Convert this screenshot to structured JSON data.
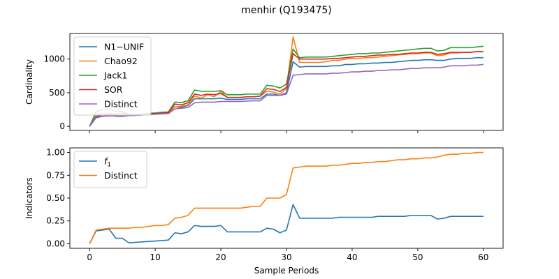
{
  "figure": {
    "title": "menhir (Q193475)"
  },
  "chart_data": [
    {
      "type": "line",
      "title": "",
      "xlabel": "",
      "ylabel": "Cardinality",
      "xlim": [
        -3,
        63
      ],
      "ylim": [
        -60,
        1380
      ],
      "xticks": [
        0,
        10,
        20,
        30,
        40,
        50,
        60
      ],
      "yticks": [
        0,
        500,
        1000
      ],
      "legend": "upper-left",
      "x": [
        0,
        1,
        2,
        3,
        4,
        5,
        6,
        7,
        8,
        9,
        10,
        11,
        12,
        13,
        14,
        15,
        16,
        17,
        18,
        19,
        20,
        21,
        22,
        23,
        24,
        25,
        26,
        27,
        28,
        29,
        30,
        31,
        32,
        33,
        34,
        35,
        36,
        37,
        38,
        39,
        40,
        41,
        42,
        43,
        44,
        45,
        46,
        47,
        48,
        49,
        50,
        51,
        52,
        53,
        54,
        55,
        56,
        57,
        58,
        59,
        60
      ],
      "series": [
        {
          "name": "N1−UNIF",
          "color": "#1f77b4",
          "values": [
            0,
            130,
            150,
            170,
            150,
            150,
            160,
            165,
            170,
            180,
            185,
            190,
            195,
            290,
            285,
            310,
            410,
            410,
            410,
            410,
            420,
            400,
            400,
            400,
            410,
            410,
            410,
            480,
            480,
            460,
            500,
            960,
            880,
            890,
            890,
            890,
            890,
            900,
            900,
            920,
            920,
            930,
            930,
            940,
            940,
            950,
            950,
            960,
            970,
            980,
            980,
            990,
            990,
            980,
            980,
            1000,
            1010,
            1010,
            1010,
            1020,
            1020
          ]
        },
        {
          "name": "Chao92",
          "color": "#ff7f0e",
          "values": [
            0,
            180,
            190,
            190,
            180,
            200,
            170,
            170,
            175,
            185,
            190,
            195,
            200,
            290,
            300,
            320,
            450,
            420,
            470,
            440,
            520,
            430,
            430,
            430,
            440,
            440,
            450,
            520,
            510,
            480,
            560,
            1330,
            950,
            950,
            950,
            950,
            960,
            980,
            980,
            1000,
            1010,
            1010,
            1020,
            1020,
            1030,
            1040,
            1050,
            1060,
            1070,
            1080,
            1080,
            1090,
            1090,
            1050,
            1060,
            1090,
            1090,
            1100,
            1100,
            1110,
            1110
          ]
        },
        {
          "name": "Jack1",
          "color": "#2ca02c",
          "values": [
            0,
            220,
            250,
            260,
            220,
            220,
            180,
            180,
            185,
            195,
            200,
            210,
            215,
            360,
            355,
            380,
            540,
            520,
            520,
            520,
            530,
            470,
            470,
            470,
            480,
            480,
            480,
            610,
            600,
            570,
            630,
            1150,
            1020,
            1030,
            1030,
            1030,
            1030,
            1040,
            1050,
            1060,
            1070,
            1080,
            1080,
            1090,
            1090,
            1100,
            1110,
            1120,
            1130,
            1140,
            1150,
            1160,
            1160,
            1120,
            1130,
            1170,
            1170,
            1170,
            1170,
            1180,
            1190
          ]
        },
        {
          "name": "SOR",
          "color": "#d62728",
          "values": [
            0,
            150,
            170,
            180,
            160,
            170,
            165,
            170,
            175,
            185,
            190,
            195,
            205,
            330,
            320,
            350,
            480,
            460,
            480,
            470,
            490,
            430,
            430,
            430,
            440,
            440,
            450,
            560,
            550,
            520,
            580,
            1080,
            1000,
            1000,
            1000,
            1000,
            1000,
            1010,
            1010,
            1020,
            1030,
            1040,
            1040,
            1050,
            1060,
            1060,
            1070,
            1070,
            1080,
            1090,
            1090,
            1100,
            1100,
            1070,
            1080,
            1100,
            1100,
            1100,
            1100,
            1110,
            1110
          ]
        },
        {
          "name": "Distinct",
          "color": "#9467bd",
          "values": [
            0,
            140,
            150,
            155,
            155,
            160,
            160,
            165,
            170,
            175,
            180,
            185,
            190,
            260,
            270,
            280,
            350,
            360,
            360,
            360,
            370,
            370,
            370,
            370,
            375,
            380,
            380,
            460,
            460,
            460,
            480,
            760,
            770,
            780,
            780,
            780,
            780,
            790,
            790,
            800,
            810,
            810,
            820,
            820,
            830,
            830,
            840,
            840,
            850,
            860,
            860,
            870,
            870,
            870,
            880,
            900,
            900,
            900,
            910,
            910,
            920
          ]
        }
      ]
    },
    {
      "type": "line",
      "title": "",
      "xlabel": "Sample Periods",
      "ylabel": "Indicators",
      "xlim": [
        -3,
        63
      ],
      "ylim": [
        -0.05,
        1.05
      ],
      "xticks": [
        0,
        10,
        20,
        30,
        40,
        50,
        60
      ],
      "yticks": [
        0.0,
        0.25,
        0.5,
        0.75,
        1.0
      ],
      "ytick_labels": [
        "0.00",
        "0.25",
        "0.50",
        "0.75",
        "1.00"
      ],
      "legend": "upper-left",
      "x": [
        0,
        1,
        2,
        3,
        4,
        5,
        6,
        7,
        8,
        9,
        10,
        11,
        12,
        13,
        14,
        15,
        16,
        17,
        18,
        19,
        20,
        21,
        22,
        23,
        24,
        25,
        26,
        27,
        28,
        29,
        30,
        31,
        32,
        33,
        34,
        35,
        36,
        37,
        38,
        39,
        40,
        41,
        42,
        43,
        44,
        45,
        46,
        47,
        48,
        49,
        50,
        51,
        52,
        53,
        54,
        55,
        56,
        57,
        58,
        59,
        60
      ],
      "series": [
        {
          "name": "f1",
          "name_main": "f",
          "name_sub": "1",
          "color": "#1f77b4",
          "values": [
            0,
            0.14,
            0.15,
            0.16,
            0.06,
            0.06,
            0.01,
            0.015,
            0.02,
            0.025,
            0.03,
            0.035,
            0.04,
            0.12,
            0.11,
            0.13,
            0.2,
            0.19,
            0.19,
            0.19,
            0.2,
            0.13,
            0.13,
            0.13,
            0.13,
            0.13,
            0.13,
            0.17,
            0.16,
            0.12,
            0.15,
            0.43,
            0.28,
            0.28,
            0.28,
            0.28,
            0.28,
            0.28,
            0.29,
            0.29,
            0.29,
            0.29,
            0.29,
            0.29,
            0.3,
            0.3,
            0.3,
            0.3,
            0.3,
            0.31,
            0.31,
            0.31,
            0.31,
            0.27,
            0.28,
            0.3,
            0.3,
            0.3,
            0.3,
            0.3,
            0.3
          ]
        },
        {
          "name": "Distinct",
          "color": "#ff7f0e",
          "values": [
            0,
            0.15,
            0.16,
            0.17,
            0.17,
            0.17,
            0.17,
            0.18,
            0.18,
            0.19,
            0.2,
            0.2,
            0.21,
            0.28,
            0.29,
            0.31,
            0.39,
            0.39,
            0.39,
            0.39,
            0.39,
            0.39,
            0.39,
            0.39,
            0.4,
            0.41,
            0.41,
            0.5,
            0.5,
            0.5,
            0.54,
            0.83,
            0.84,
            0.85,
            0.85,
            0.85,
            0.85,
            0.86,
            0.86,
            0.87,
            0.88,
            0.88,
            0.89,
            0.89,
            0.9,
            0.9,
            0.91,
            0.92,
            0.92,
            0.93,
            0.93,
            0.94,
            0.94,
            0.95,
            0.97,
            0.98,
            0.98,
            0.99,
            0.99,
            1.0,
            1.0
          ]
        }
      ]
    }
  ]
}
